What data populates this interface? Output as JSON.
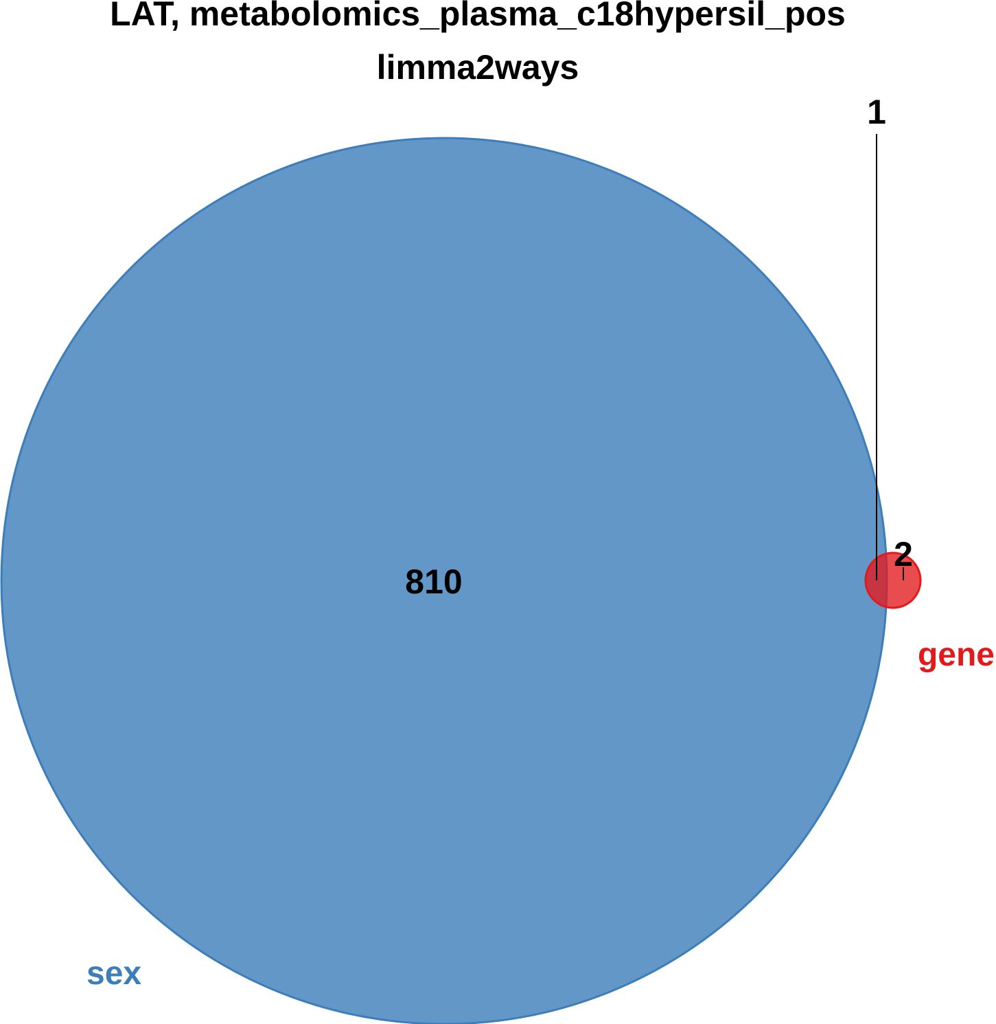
{
  "chart_data": {
    "type": "venn",
    "title": "LAT, metabolomics_plasma_c18hypersil_pos",
    "subtitle": "limma2ways",
    "sets": [
      {
        "name": "sex",
        "color": "#3C7DBA",
        "size": 811
      },
      {
        "name": "gene",
        "color": "#E31A1C",
        "size": 3
      }
    ],
    "regions": [
      {
        "sets": [
          "sex"
        ],
        "count": "810"
      },
      {
        "sets": [
          "sex",
          "gene"
        ],
        "count": "1"
      },
      {
        "sets": [
          "gene"
        ],
        "count": "2"
      }
    ]
  }
}
